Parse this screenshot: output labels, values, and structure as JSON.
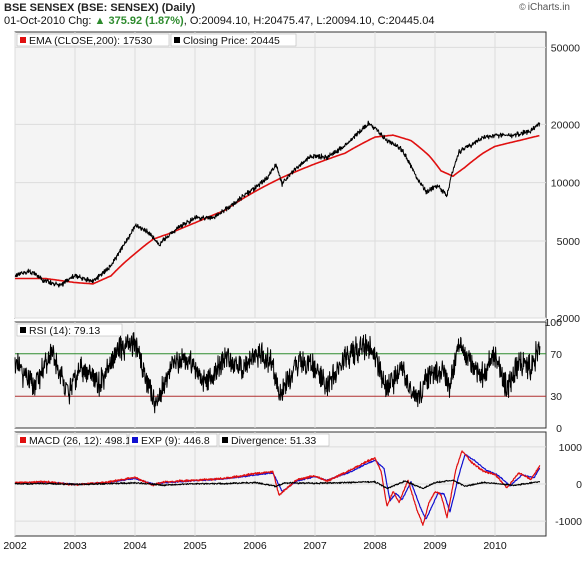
{
  "header": {
    "title": "BSE SENSEX (BSE: SENSEX) (Daily)",
    "date": "01-Oct-2010",
    "chg_label": "Chg:",
    "chg_value": "375.92 (1.87%)",
    "ohlc": ", O:20094.10, H:20475.47, L:20094.10, C:20445.04",
    "brand": "iCharts.in",
    "brand_symbol": "©"
  },
  "colors": {
    "ema": "#e01010",
    "close": "#000000",
    "macd": "#e01010",
    "exp": "#1010d0",
    "divergence": "#000000",
    "rsi_70": "#2e8b2e",
    "rsi_30": "#b03030",
    "panel_bg": "#f4f4f4",
    "legend_bg": "#ffffff"
  },
  "chart_data": [
    {
      "type": "line",
      "panel": "price",
      "scale": "log",
      "legend": [
        {
          "label": "EMA (CLOSE,200): 17530",
          "color": "#e01010"
        },
        {
          "label": "Closing Price: 20445",
          "color": "#000000"
        }
      ],
      "xlabels": [
        "2002",
        "2003",
        "2004",
        "2005",
        "2006",
        "2007",
        "2008",
        "2009",
        "2010"
      ],
      "xrange": [
        2002.0,
        2010.85
      ],
      "y_ticks": [
        2000,
        5000,
        10000,
        20000,
        50000
      ],
      "ylim": [
        2000,
        60000
      ],
      "series": [
        {
          "name": "Closing Price",
          "x": [
            2002.0,
            2002.25,
            2002.5,
            2002.75,
            2003.0,
            2003.3,
            2003.6,
            2003.9,
            2004.0,
            2004.2,
            2004.4,
            2004.7,
            2005.0,
            2005.3,
            2005.6,
            2005.9,
            2006.2,
            2006.35,
            2006.45,
            2006.7,
            2006.95,
            2007.2,
            2007.5,
            2007.75,
            2007.9,
            2008.0,
            2008.2,
            2008.45,
            2008.7,
            2008.85,
            2009.05,
            2009.2,
            2009.4,
            2009.6,
            2009.8,
            2010.0,
            2010.3,
            2010.6,
            2010.75
          ],
          "values": [
            3300,
            3500,
            3100,
            2950,
            3300,
            3100,
            3700,
            5200,
            6000,
            5600,
            4800,
            5800,
            6600,
            6500,
            7600,
            8900,
            10500,
            12500,
            9800,
            12000,
            13800,
            13500,
            15500,
            18500,
            20300,
            19000,
            16500,
            14800,
            10500,
            9000,
            9600,
            8500,
            14500,
            15500,
            17200,
            17500,
            17600,
            18500,
            20445
          ]
        },
        {
          "name": "EMA (CLOSE,200)",
          "x": [
            2002.0,
            2002.5,
            2003.0,
            2003.3,
            2003.6,
            2004.0,
            2004.3,
            2004.6,
            2005.0,
            2005.5,
            2006.0,
            2006.5,
            2007.0,
            2007.5,
            2008.0,
            2008.3,
            2008.6,
            2008.9,
            2009.1,
            2009.3,
            2009.5,
            2009.8,
            2010.0,
            2010.4,
            2010.75
          ],
          "values": [
            3200,
            3200,
            3050,
            3000,
            3300,
            4300,
            5100,
            5500,
            6200,
            7200,
            9000,
            10800,
            12500,
            14200,
            17200,
            17600,
            16500,
            13800,
            11500,
            10800,
            12000,
            14200,
            15400,
            16500,
            17530
          ]
        }
      ]
    },
    {
      "type": "line",
      "panel": "rsi",
      "legend": [
        {
          "label": "RSI (14): 79.13",
          "color": "#000000"
        }
      ],
      "y_ticks": [
        0,
        30,
        70,
        100
      ],
      "ylim": [
        0,
        100
      ],
      "reference_lines": [
        70,
        30
      ],
      "series": [
        {
          "name": "RSI (14)",
          "x": [
            2002.0,
            2002.3,
            2002.6,
            2002.9,
            2003.1,
            2003.4,
            2003.7,
            2004.0,
            2004.2,
            2004.35,
            2004.6,
            2004.9,
            2005.2,
            2005.5,
            2005.8,
            2006.0,
            2006.3,
            2006.4,
            2006.7,
            2007.0,
            2007.2,
            2007.5,
            2007.8,
            2008.0,
            2008.2,
            2008.45,
            2008.7,
            2008.85,
            2009.1,
            2009.25,
            2009.4,
            2009.6,
            2009.8,
            2010.0,
            2010.2,
            2010.4,
            2010.6,
            2010.75
          ],
          "values": [
            62,
            38,
            70,
            32,
            58,
            40,
            72,
            80,
            45,
            22,
            60,
            66,
            40,
            68,
            55,
            72,
            60,
            28,
            62,
            58,
            40,
            65,
            78,
            70,
            35,
            55,
            25,
            48,
            55,
            40,
            80,
            60,
            50,
            70,
            38,
            62,
            55,
            79.13
          ]
        }
      ]
    },
    {
      "type": "line",
      "panel": "macd",
      "legend": [
        {
          "label": "MACD (26, 12): 498.1",
          "color": "#e01010"
        },
        {
          "label": "EXP (9): 446.8",
          "color": "#1010d0"
        },
        {
          "label": "Divergence: 51.33",
          "color": "#000000"
        }
      ],
      "y_ticks": [
        -1000,
        0,
        1000
      ],
      "ylim": [
        -1400,
        1400
      ],
      "series": [
        {
          "name": "MACD (26, 12)",
          "x": [
            2002.0,
            2002.5,
            2003.0,
            2003.5,
            2004.0,
            2004.3,
            2004.5,
            2005.0,
            2005.5,
            2006.0,
            2006.3,
            2006.4,
            2006.7,
            2007.0,
            2007.2,
            2007.6,
            2007.8,
            2008.0,
            2008.1,
            2008.2,
            2008.3,
            2008.4,
            2008.55,
            2008.7,
            2008.8,
            2008.9,
            2009.0,
            2009.1,
            2009.2,
            2009.35,
            2009.45,
            2009.6,
            2009.8,
            2010.0,
            2010.2,
            2010.4,
            2010.6,
            2010.75
          ],
          "values": [
            30,
            60,
            -20,
            40,
            180,
            -30,
            60,
            100,
            150,
            280,
            330,
            -300,
            120,
            220,
            80,
            380,
            560,
            700,
            350,
            -600,
            -200,
            -500,
            100,
            -700,
            -1100,
            -500,
            -200,
            -300,
            -900,
            400,
            900,
            600,
            350,
            260,
            -100,
            300,
            120,
            498.1
          ]
        },
        {
          "name": "EXP (9)",
          "x": [
            2002.0,
            2002.5,
            2003.0,
            2003.5,
            2004.0,
            2004.3,
            2004.5,
            2005.0,
            2005.5,
            2006.0,
            2006.3,
            2006.45,
            2006.7,
            2007.0,
            2007.2,
            2007.6,
            2007.8,
            2008.0,
            2008.15,
            2008.25,
            2008.35,
            2008.45,
            2008.6,
            2008.75,
            2008.85,
            2008.95,
            2009.05,
            2009.15,
            2009.25,
            2009.4,
            2009.5,
            2009.65,
            2009.85,
            2010.05,
            2010.25,
            2010.45,
            2010.65,
            2010.75
          ],
          "values": [
            20,
            50,
            -10,
            30,
            150,
            0,
            40,
            90,
            140,
            240,
            300,
            -200,
            80,
            200,
            100,
            330,
            500,
            640,
            420,
            -450,
            -250,
            -420,
            50,
            -600,
            -950,
            -600,
            -250,
            -260,
            -750,
            250,
            800,
            640,
            380,
            240,
            -50,
            250,
            160,
            446.8
          ]
        },
        {
          "name": "Divergence",
          "x": [
            2002.0,
            2002.5,
            2003.0,
            2003.5,
            2004.0,
            2004.5,
            2005.0,
            2005.5,
            2006.0,
            2006.35,
            2006.5,
            2007.0,
            2007.5,
            2008.0,
            2008.2,
            2008.5,
            2008.8,
            2009.0,
            2009.3,
            2009.5,
            2009.8,
            2010.0,
            2010.3,
            2010.6,
            2010.75
          ],
          "values": [
            5,
            10,
            -10,
            8,
            30,
            -30,
            10,
            10,
            40,
            -60,
            30,
            20,
            40,
            60,
            -120,
            80,
            -120,
            40,
            100,
            -60,
            40,
            20,
            -40,
            30,
            51.33
          ]
        }
      ]
    }
  ]
}
